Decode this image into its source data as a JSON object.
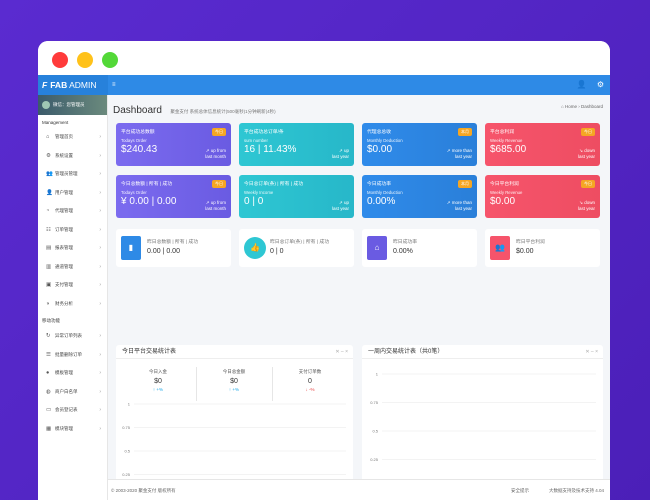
{
  "brand": {
    "logo": "F",
    "name_bold": "FAB",
    "name_rest": " ADMIN"
  },
  "topnav": {
    "toggle": "≡",
    "user_icon": "user-icon",
    "gear_icon": "gear-icon"
  },
  "sidebar": {
    "user_label": "微信：您管理员",
    "section1": "Management",
    "items1": [
      {
        "label": "管理首页",
        "icon": "home-icon"
      },
      {
        "label": "系统设置",
        "icon": "gear-icon"
      },
      {
        "label": "管理员管理",
        "icon": "users-icon"
      },
      {
        "label": "用户管理",
        "icon": "user-icon"
      },
      {
        "label": "代理管理",
        "icon": "agent-icon"
      },
      {
        "label": "订单管理",
        "icon": "cart-icon"
      },
      {
        "label": "报表管理",
        "icon": "report-icon"
      },
      {
        "label": "通道管理",
        "icon": "bank-icon"
      },
      {
        "label": "支付管理",
        "icon": "money-icon"
      },
      {
        "label": "财务分析",
        "icon": "chart-icon"
      }
    ],
    "section2": "移动功能",
    "items2": [
      {
        "label": "异常订单列表",
        "icon": "refresh-icon"
      },
      {
        "label": "批量删除订单",
        "icon": "list-icon"
      },
      {
        "label": "模板管理",
        "icon": "apple-icon"
      },
      {
        "label": "商户白名单",
        "icon": "wechat-icon"
      },
      {
        "label": "会员登记表",
        "icon": "wallet-icon"
      },
      {
        "label": "模块管理",
        "icon": "grid-icon"
      }
    ]
  },
  "header": {
    "title": "Dashboard",
    "subtitle": "聚金支付 系统总体信息统计(500毫秒)1分钟刷新(4秒)",
    "breadcrumb": "⌂ Home › Dashboard"
  },
  "cards": [
    {
      "title": "平台成功总数额",
      "badge": "今日",
      "sub": "Todays Order",
      "value": "$240.43",
      "trend1": "↗ up from",
      "trend2": "last month",
      "color": "purple"
    },
    {
      "title": "平台成功总订单/条",
      "badge": "",
      "sub": "sum number",
      "value": "16 | 11.43%",
      "trend1": "↗ up",
      "trend2": "last year",
      "color": "teal"
    },
    {
      "title": "代理总总收",
      "badge": "本月",
      "sub": "Monthly Deduction",
      "value": "$0.00",
      "trend1": "↗ more than",
      "trend2": "last year",
      "color": "blue"
    },
    {
      "title": "平台总利润",
      "badge": "今日",
      "sub": "Weekly Revenue",
      "value": "$685.00",
      "trend1": "↘ down",
      "trend2": "last year",
      "color": "red"
    },
    {
      "title": "今日总数额 | 所有 | 成功",
      "badge": "今日",
      "sub": "Todays Order",
      "value": "¥ 0.00 | 0.00",
      "trend1": "↗ up from",
      "trend2": "last month",
      "color": "purple"
    },
    {
      "title": "今日总订单(条) | 所有 | 成功",
      "badge": "",
      "sub": "Weekly Income",
      "value": "0 | 0",
      "trend1": "↗ up",
      "trend2": "last year",
      "color": "teal"
    },
    {
      "title": "今日成功率",
      "badge": "本月",
      "sub": "Monthly Deduction",
      "value": "0.00%",
      "trend1": "↗ more than",
      "trend2": "last year",
      "color": "blue"
    },
    {
      "title": "今日平台利润",
      "badge": "今日",
      "sub": "Weekly Revenue",
      "value": "$0.00",
      "trend1": "↘ down",
      "trend2": "last year",
      "color": "red"
    }
  ],
  "stats": [
    {
      "title": "昨日总数额 | 所有 | 成功",
      "value": "0.00 | 0.00",
      "icon": "bar-chart-icon",
      "color": "#2e8ae6"
    },
    {
      "title": "昨日总订单(条) | 所有 | 成功",
      "value": "0 | 0",
      "icon": "thumbs-up-icon",
      "color": "#2ec7d3"
    },
    {
      "title": "昨日成功率",
      "value": "0.00%",
      "icon": "basket-icon",
      "color": "#6a5be2"
    },
    {
      "title": "昨日平台利润",
      "value": "$0.00",
      "icon": "users-icon",
      "color": "#f6546b"
    }
  ],
  "panel_left": {
    "title": "今日平台交易统计表",
    "controls": "✕ –  ×",
    "kpis": [
      {
        "label": "今日入金",
        "value": "$0",
        "trend": "↑ +%",
        "dir": "up"
      },
      {
        "label": "今日总金额",
        "value": "$0",
        "trend": "↑ +%",
        "dir": "up"
      },
      {
        "label": "支付订单数",
        "value": "0",
        "trend": "↓ -%",
        "dir": "down"
      }
    ]
  },
  "panel_right": {
    "title": "一周内交易统计表（共0笔）",
    "controls": "✕ –  ×"
  },
  "chart_data": [
    {
      "type": "bar",
      "categories": [
        "今日总收益金额",
        "今日总入金金额",
        "今日平台总金额"
      ],
      "values": [
        0,
        0,
        0
      ],
      "title": "",
      "xlabel": "",
      "ylabel": "",
      "ylim": [
        0,
        1
      ],
      "yticks": [
        "1",
        "0.75",
        "0.5",
        "0.25",
        "0"
      ],
      "grid": true
    },
    {
      "type": "line",
      "categories": [
        "03-05-06"
      ],
      "values": [
        0
      ],
      "title": "",
      "xlabel": "",
      "ylabel": "",
      "ylim": [
        0,
        1
      ],
      "yticks": [
        "1",
        "0.75",
        "0.5",
        "0.25",
        "0"
      ],
      "grid": true
    }
  ],
  "footer": {
    "left": "© 2003-2020 聚金支付 版权所有",
    "middle": "安全提示",
    "right": "大数据支持及技术支持 4.04"
  }
}
